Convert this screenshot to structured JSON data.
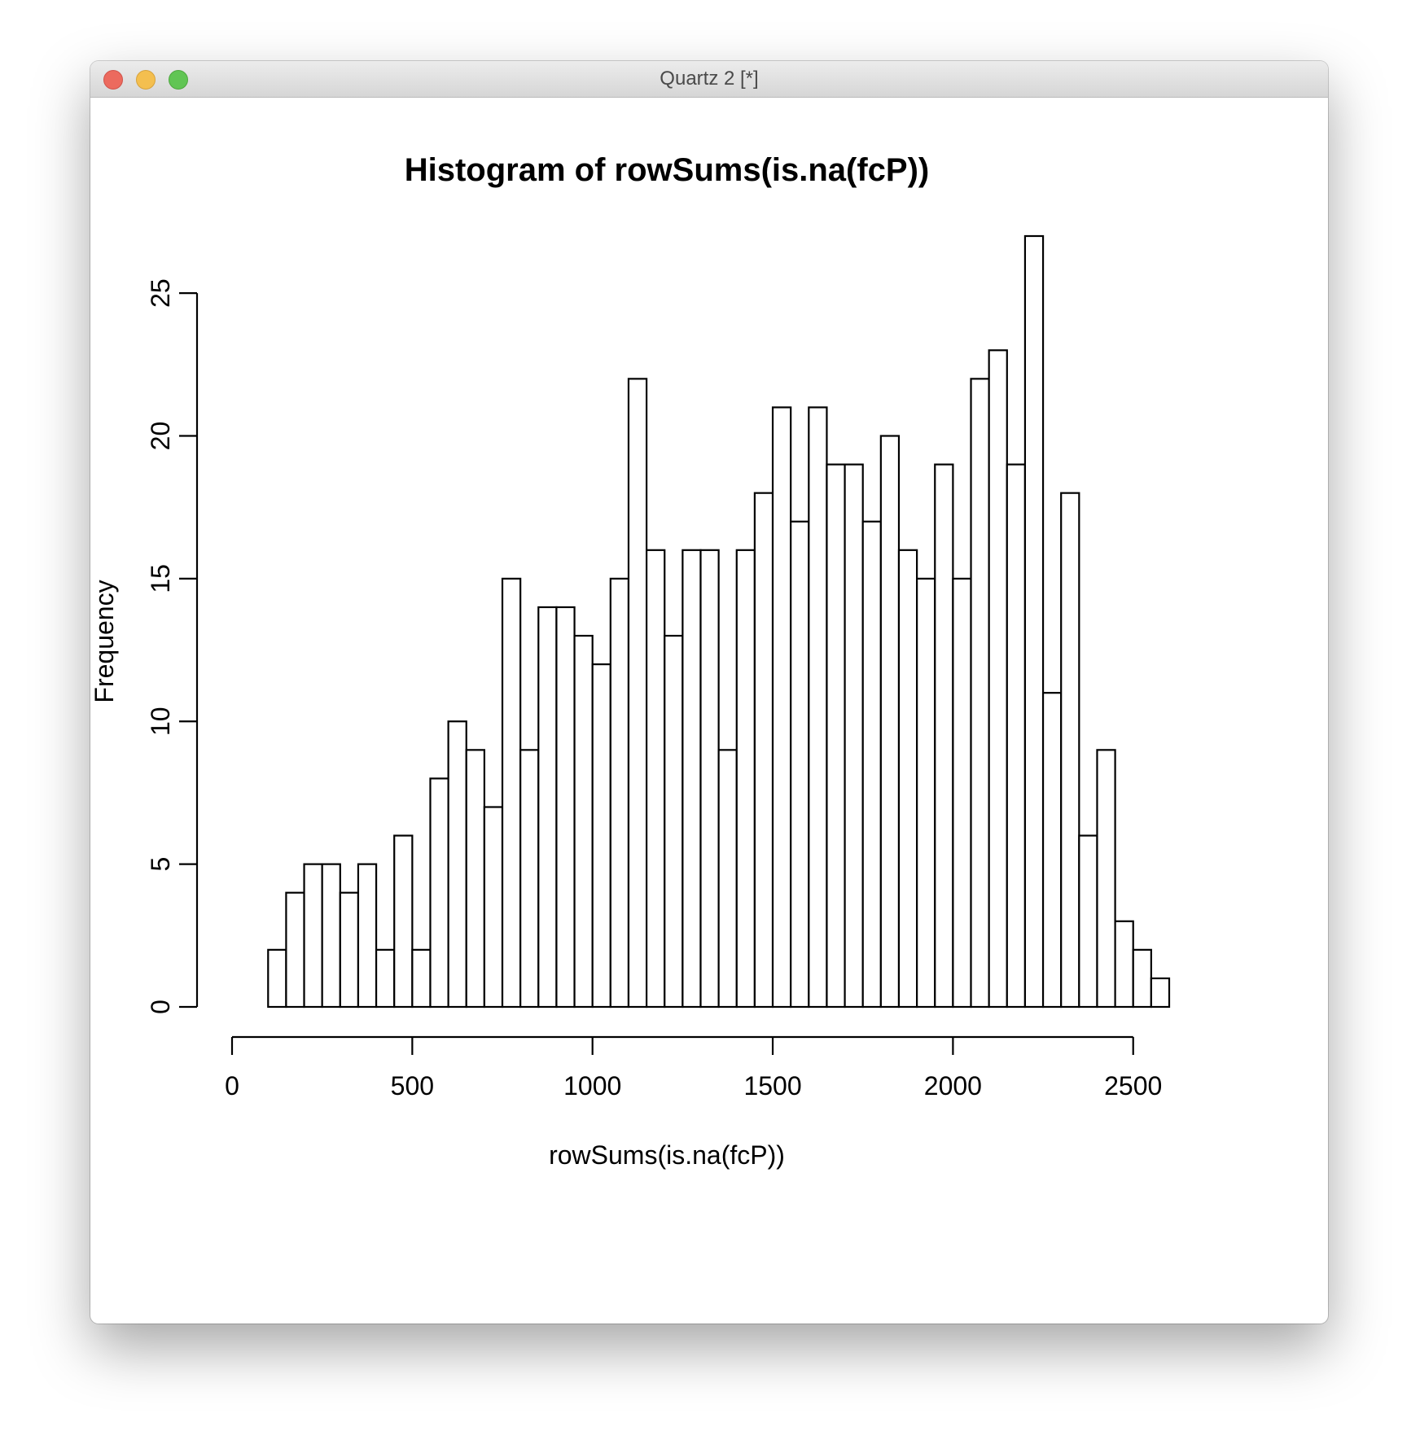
{
  "window": {
    "title": "Quartz 2 [*]",
    "controls": [
      "close",
      "minimize",
      "zoom"
    ],
    "colors": {
      "close": "#ec6a5e",
      "minimize": "#f4bf4f",
      "zoom": "#61c554"
    }
  },
  "chart_data": {
    "type": "bar",
    "title": "Histogram of rowSums(is.na(fcP))",
    "xlabel": "rowSums(is.na(fcP))",
    "ylabel": "Frequency",
    "bin_width": 50,
    "bin_start": 100,
    "values": [
      2,
      4,
      5,
      5,
      4,
      5,
      2,
      6,
      2,
      8,
      10,
      9,
      7,
      15,
      9,
      14,
      14,
      13,
      12,
      15,
      22,
      16,
      13,
      16,
      16,
      9,
      16,
      18,
      21,
      17,
      21,
      19,
      19,
      17,
      20,
      16,
      15,
      19,
      15,
      22,
      23,
      19,
      27,
      11,
      18,
      6,
      9,
      3,
      2,
      1
    ],
    "xlim": [
      0,
      2600
    ],
    "ylim": [
      0,
      27
    ],
    "x_ticks": [
      0,
      500,
      1000,
      1500,
      2000,
      2500
    ],
    "x_tick_labels": [
      "0",
      "500",
      "1000",
      "1500",
      "2000",
      "2500"
    ],
    "y_ticks": [
      0,
      5,
      10,
      15,
      20,
      25
    ],
    "y_tick_labels": [
      "0",
      "5",
      "10",
      "15",
      "20",
      "25"
    ],
    "grid": false,
    "legend": "none",
    "bar_fill": "#ffffff",
    "bar_stroke": "#000000"
  }
}
